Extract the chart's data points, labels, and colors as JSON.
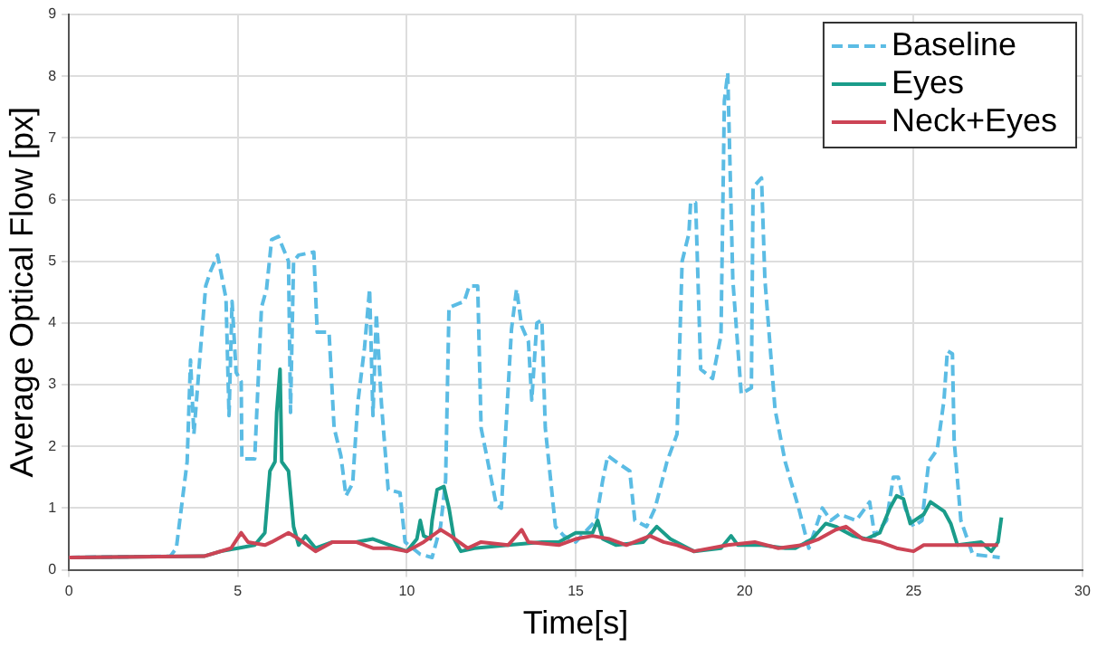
{
  "chart_data": {
    "type": "line",
    "xlabel": "Time[s]",
    "ylabel": "Average Optical Flow [px]",
    "xlim": [
      0,
      30
    ],
    "xticks": [
      0,
      5,
      10,
      15,
      20,
      25,
      30
    ],
    "ylim": [
      0,
      9
    ],
    "yticks": [
      0,
      1,
      2,
      3,
      4,
      5,
      6,
      7,
      8,
      9
    ],
    "grid": true,
    "legend": "top right",
    "marker": "none",
    "series": [
      {
        "name": "Baseline",
        "color": "#5bbce4",
        "line_style": "dashed",
        "x": [
          0,
          3.0,
          3.18,
          3.5,
          3.6,
          3.7,
          3.9,
          4.05,
          4.2,
          4.4,
          4.65,
          4.74,
          4.83,
          4.95,
          5.1,
          5.12,
          5.5,
          5.7,
          5.85,
          6.0,
          6.2,
          6.5,
          6.56,
          6.65,
          6.8,
          7.25,
          7.35,
          7.7,
          7.85,
          8.05,
          8.2,
          8.4,
          8.55,
          8.75,
          8.9,
          9.0,
          9.1,
          9.25,
          9.45,
          9.8,
          9.95,
          10.4,
          10.75,
          11.0,
          11.15,
          11.25,
          11.7,
          11.85,
          12.1,
          12.2,
          12.4,
          12.65,
          12.8,
          13.1,
          13.25,
          13.4,
          13.6,
          13.7,
          13.85,
          14.0,
          14.1,
          14.4,
          14.65,
          15.0,
          15.6,
          15.8,
          15.95,
          16.2,
          16.6,
          16.75,
          17.1,
          17.35,
          17.7,
          18.0,
          18.15,
          18.35,
          18.4,
          18.55,
          18.7,
          19.05,
          19.3,
          19.4,
          19.5,
          19.65,
          19.9,
          20.2,
          20.25,
          20.5,
          20.6,
          20.9,
          21.2,
          21.6,
          21.9,
          22.3,
          22.55,
          22.8,
          23.3,
          23.7,
          23.85,
          24.2,
          24.4,
          24.55,
          24.75,
          25.0,
          25.25,
          25.45,
          25.7,
          25.9,
          26.0,
          26.15,
          26.2,
          26.4,
          26.75,
          27.55
        ],
        "values": [
          0.2,
          0.22,
          0.35,
          1.75,
          3.4,
          2.2,
          3.6,
          4.6,
          4.85,
          5.1,
          4.4,
          2.5,
          4.35,
          3.2,
          3.05,
          1.8,
          1.8,
          4.25,
          4.55,
          5.35,
          5.4,
          5.0,
          2.55,
          5.0,
          5.1,
          5.15,
          3.85,
          3.85,
          2.3,
          1.85,
          1.2,
          1.4,
          2.7,
          3.6,
          4.55,
          2.5,
          4.15,
          2.7,
          1.3,
          1.25,
          0.45,
          0.25,
          0.2,
          0.7,
          1.45,
          4.25,
          4.35,
          4.6,
          4.6,
          2.3,
          1.75,
          1.05,
          1.0,
          3.9,
          4.55,
          3.95,
          3.7,
          2.75,
          4.0,
          4.05,
          2.3,
          0.7,
          0.55,
          0.45,
          0.8,
          1.45,
          1.85,
          1.75,
          1.6,
          0.8,
          0.7,
          1.0,
          1.75,
          2.2,
          5.0,
          5.45,
          5.95,
          5.95,
          3.25,
          3.1,
          3.8,
          7.6,
          8.05,
          4.7,
          2.85,
          2.95,
          6.2,
          6.35,
          4.7,
          2.6,
          1.75,
          1.0,
          0.35,
          1.0,
          0.8,
          0.9,
          0.8,
          1.1,
          0.55,
          0.8,
          1.5,
          1.5,
          1.0,
          0.7,
          0.8,
          1.75,
          1.95,
          2.75,
          3.55,
          3.5,
          2.1,
          0.8,
          0.25,
          0.2
        ]
      },
      {
        "name": "Eyes",
        "color": "#1a9c8a",
        "line_style": "solid",
        "x": [
          0,
          4.0,
          4.5,
          5.0,
          5.5,
          5.8,
          5.95,
          6.1,
          6.15,
          6.25,
          6.3,
          6.5,
          6.65,
          6.8,
          7.0,
          7.3,
          7.8,
          8.5,
          9.0,
          9.5,
          10.0,
          10.3,
          10.4,
          10.5,
          10.7,
          10.75,
          10.9,
          11.1,
          11.25,
          11.4,
          11.6,
          12.0,
          13.0,
          14.0,
          14.5,
          15.0,
          15.5,
          15.65,
          15.8,
          16.2,
          17.0,
          17.4,
          17.8,
          18.5,
          19.3,
          19.6,
          19.8,
          20.5,
          21.2,
          21.5,
          22.0,
          22.4,
          22.7,
          23.2,
          23.6,
          24.0,
          24.3,
          24.5,
          24.7,
          24.9,
          25.3,
          25.5,
          25.9,
          26.1,
          26.3,
          27.0,
          27.3,
          27.5,
          27.6
        ],
        "values": [
          0.2,
          0.22,
          0.3,
          0.35,
          0.4,
          0.6,
          1.6,
          1.75,
          2.55,
          3.25,
          1.75,
          1.6,
          0.7,
          0.4,
          0.55,
          0.35,
          0.45,
          0.45,
          0.5,
          0.4,
          0.3,
          0.5,
          0.8,
          0.55,
          0.5,
          0.8,
          1.3,
          1.35,
          1.0,
          0.5,
          0.3,
          0.35,
          0.4,
          0.45,
          0.45,
          0.6,
          0.6,
          0.8,
          0.5,
          0.4,
          0.45,
          0.7,
          0.5,
          0.3,
          0.35,
          0.55,
          0.4,
          0.4,
          0.35,
          0.35,
          0.5,
          0.75,
          0.7,
          0.55,
          0.5,
          0.6,
          1.0,
          1.2,
          1.15,
          0.75,
          0.9,
          1.1,
          0.95,
          0.75,
          0.4,
          0.45,
          0.3,
          0.45,
          0.85
        ]
      },
      {
        "name": "Neck+Eyes",
        "color": "#cc4455",
        "line_style": "solid",
        "x": [
          0,
          4.0,
          4.8,
          5.1,
          5.3,
          5.8,
          6.0,
          6.5,
          6.8,
          7.3,
          7.8,
          8.5,
          9.0,
          9.5,
          10.0,
          10.5,
          11.0,
          11.3,
          11.8,
          12.2,
          13.0,
          13.4,
          13.6,
          14.5,
          15.0,
          15.5,
          16.0,
          16.5,
          17.2,
          17.6,
          18.0,
          18.5,
          19.5,
          20.3,
          21.0,
          21.7,
          22.2,
          22.7,
          23.0,
          23.5,
          24.0,
          24.5,
          25.0,
          25.3,
          26.0,
          27.0,
          27.5
        ],
        "values": [
          0.2,
          0.22,
          0.35,
          0.6,
          0.45,
          0.4,
          0.45,
          0.6,
          0.5,
          0.3,
          0.45,
          0.45,
          0.35,
          0.35,
          0.3,
          0.45,
          0.65,
          0.55,
          0.35,
          0.45,
          0.4,
          0.65,
          0.45,
          0.4,
          0.5,
          0.55,
          0.5,
          0.4,
          0.55,
          0.45,
          0.4,
          0.3,
          0.4,
          0.45,
          0.35,
          0.4,
          0.5,
          0.65,
          0.7,
          0.5,
          0.45,
          0.35,
          0.3,
          0.4,
          0.4,
          0.4,
          0.4
        ]
      }
    ]
  }
}
